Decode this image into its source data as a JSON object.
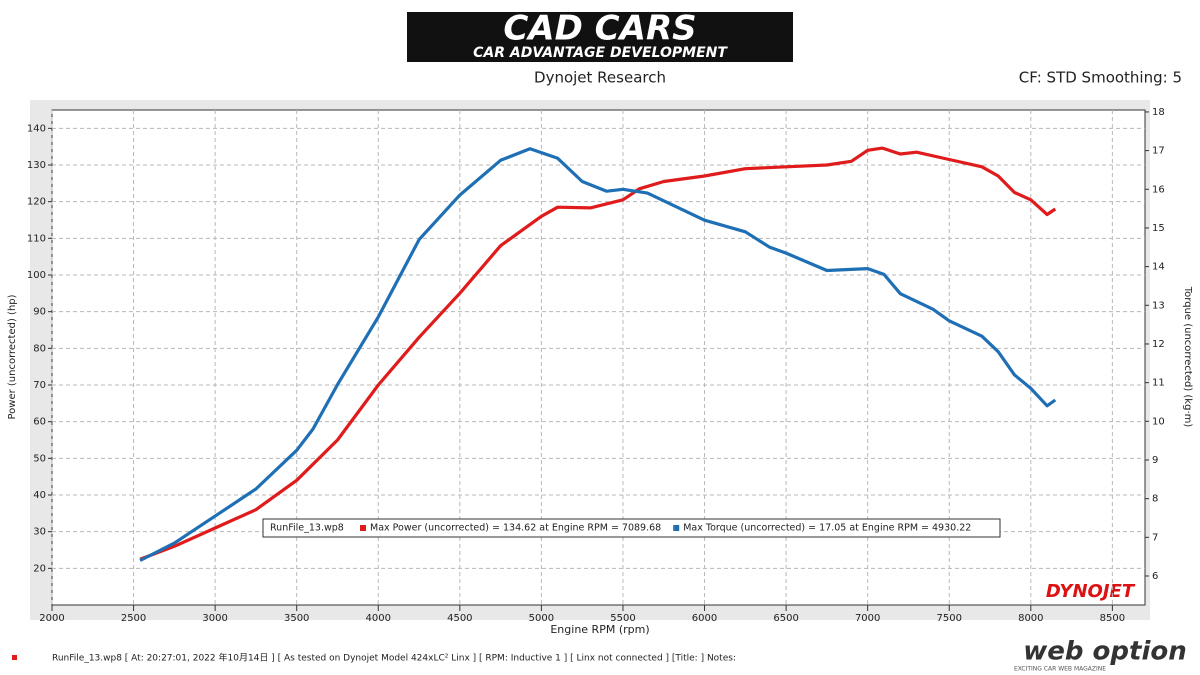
{
  "chart_data": {
    "type": "line",
    "logo_title": "CAD CARS",
    "logo_subtitle": "CAR ADVANTAGE DEVELOPMENT",
    "title": "Dynojet Research",
    "settings_text": "CF: STD Smoothing: 5",
    "xlabel": "Engine RPM (rpm)",
    "ylabel": "Power (uncorrected) (hp)",
    "y2label": "Torque (uncorrected) (kg·m)",
    "xlim": [
      2000,
      8700
    ],
    "xticks": [
      2000,
      2500,
      3000,
      3500,
      4000,
      4500,
      5000,
      5500,
      6000,
      6500,
      7000,
      7500,
      8000,
      8500
    ],
    "ylim": [
      10,
      145
    ],
    "yticks": [
      20,
      30,
      40,
      50,
      60,
      70,
      80,
      90,
      100,
      110,
      120,
      130,
      140
    ],
    "y2lim": [
      5.25,
      18.05
    ],
    "y2ticks": [
      6,
      7,
      8,
      9,
      10,
      11,
      12,
      13,
      14,
      15,
      16,
      17,
      18
    ],
    "grid": true,
    "legend_file": "RunFile_13.wp8",
    "series": [
      {
        "name": "Max Power (uncorrected) = 134.62 at Engine RPM = 7089.68",
        "color": "#e01b1b",
        "axis": "y",
        "x": [
          2540,
          2750,
          3000,
          3250,
          3500,
          3750,
          4000,
          4250,
          4500,
          4750,
          5000,
          5100,
          5300,
          5500,
          5600,
          5750,
          6000,
          6250,
          6500,
          6750,
          6900,
          7000,
          7090,
          7200,
          7300,
          7500,
          7700,
          7800,
          7900,
          8000,
          8050,
          8100,
          8150
        ],
        "values": [
          22.5,
          26,
          31,
          36,
          44,
          55,
          70,
          83,
          95,
          108,
          116,
          118.5,
          118.3,
          120.5,
          123.5,
          125.5,
          127,
          129,
          129.5,
          130,
          131,
          134,
          134.6,
          133,
          133.5,
          131.5,
          129.5,
          127,
          122.5,
          120.5,
          118.5,
          116.5,
          118
        ]
      },
      {
        "name": "Max Torque (uncorrected) = 17.05 at Engine RPM = 4930.22",
        "color": "#1f6fb5",
        "axis": "y2",
        "x": [
          2540,
          2750,
          3000,
          3250,
          3500,
          3600,
          3750,
          4000,
          4250,
          4500,
          4750,
          4930,
          5100,
          5250,
          5400,
          5500,
          5650,
          5800,
          6000,
          6250,
          6400,
          6500,
          6750,
          7000,
          7100,
          7200,
          7400,
          7500,
          7700,
          7800,
          7900,
          8000,
          8100,
          8150
        ],
        "values": [
          6.4,
          6.85,
          7.55,
          8.25,
          9.25,
          9.8,
          10.95,
          12.7,
          14.7,
          15.85,
          16.75,
          17.05,
          16.8,
          16.2,
          15.95,
          16.0,
          15.9,
          15.6,
          15.2,
          14.9,
          14.5,
          14.35,
          13.9,
          13.95,
          13.8,
          13.3,
          12.9,
          12.6,
          12.2,
          11.8,
          11.2,
          10.85,
          10.4,
          10.55
        ]
      }
    ],
    "brand": "DYNOJET",
    "footer": "RunFile_13.wp8  [ At:  20:27:01, 2022 年10月14日 ] [ As tested on Dynojet Model 424xLC² Linx ] [ RPM: Inductive 1 ] [ Linx not connected ] [Title: ]  Notes:",
    "watermark": "web option",
    "watermark_tagline": "EXCITING CAR WEB MAGAZINE"
  }
}
